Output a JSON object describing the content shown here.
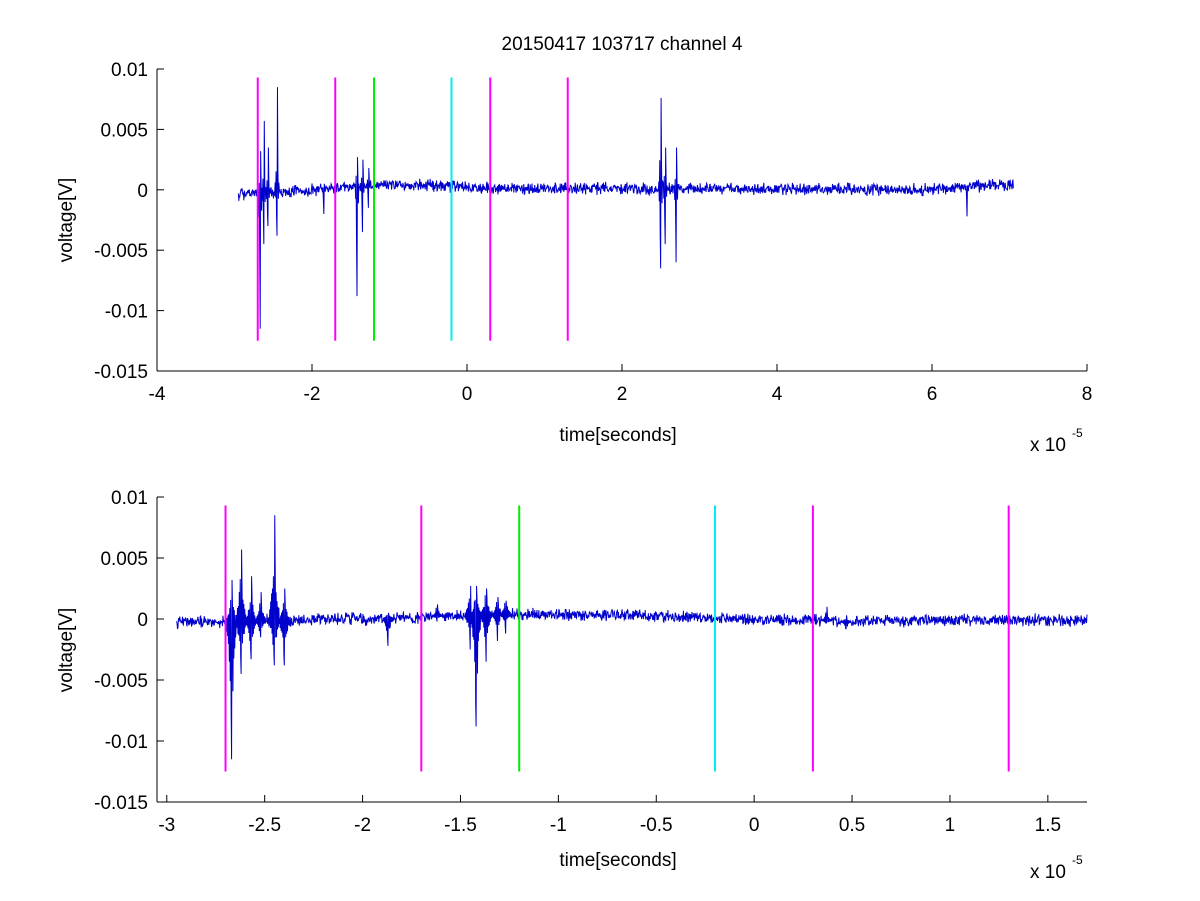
{
  "title": "20150417 103717 channel 4",
  "colors": {
    "signal": "#0000cc",
    "marker_magenta": "#ff00ff",
    "marker_green": "#00ee00",
    "marker_cyan": "#00eeee"
  },
  "chart_data": [
    {
      "type": "line",
      "title": "20150417 103717 channel 4",
      "xlabel": "time[seconds]",
      "ylabel": "voltage[V]",
      "x_multiplier_label": "x 10",
      "x_multiplier_exponent": "-5",
      "x_scale": 1e-05,
      "xlim": [
        -4,
        8
      ],
      "ylim": [
        -0.015,
        0.01
      ],
      "xticks": [
        -4,
        -2,
        0,
        2,
        4,
        6,
        8
      ],
      "xtick_labels": [
        "-4",
        "-2",
        "0",
        "2",
        "4",
        "6",
        "8"
      ],
      "yticks": [
        0.01,
        0.005,
        0,
        -0.005,
        -0.01,
        -0.015
      ],
      "ytick_labels": [
        "0.01",
        "0.005",
        "0",
        "-0.005",
        "-0.01",
        "-0.015"
      ],
      "grid": false,
      "series": [
        {
          "color": "#0000cc",
          "x_range": [
            -2.95,
            7.05
          ],
          "baseline_segments": [
            [
              -2.95,
              -0.0004
            ],
            [
              -1.8,
              0.0001
            ],
            [
              -1.2,
              0.0004
            ],
            [
              -0.6,
              0.0004
            ],
            [
              0.5,
              0.0001
            ],
            [
              2.0,
              0.0001
            ],
            [
              6.0,
              0.0
            ],
            [
              6.5,
              0.0003
            ],
            [
              7.05,
              0.0004
            ]
          ],
          "noise_amplitude": 0.0004,
          "bursts": [
            {
              "x": -2.67,
              "min": -0.0115,
              "max": 0.0032
            },
            {
              "x": -2.62,
              "min": -0.0045,
              "max": 0.0057
            },
            {
              "x": -2.57,
              "min": -0.003,
              "max": 0.0035
            },
            {
              "x": -2.45,
              "min": -0.0038,
              "max": 0.0085
            },
            {
              "x": -1.85,
              "min": -0.002,
              "max": 0.0005
            },
            {
              "x": -1.42,
              "min": -0.0088,
              "max": 0.0027
            },
            {
              "x": -1.35,
              "min": -0.0035,
              "max": 0.0025
            },
            {
              "x": -1.27,
              "min": -0.0015,
              "max": 0.0018
            },
            {
              "x": 2.5,
              "min": -0.0065,
              "max": 0.0076
            },
            {
              "x": 2.56,
              "min": -0.0045,
              "max": 0.0035
            },
            {
              "x": 2.7,
              "min": -0.006,
              "max": 0.0035
            },
            {
              "x": 6.45,
              "min": -0.0022,
              "max": 0.0003
            }
          ]
        }
      ],
      "markers": [
        {
          "x": -2.7,
          "color": "#ff00ff",
          "y_range": [
            -0.0125,
            0.0093
          ]
        },
        {
          "x": -1.7,
          "color": "#ff00ff",
          "y_range": [
            -0.0125,
            0.0093
          ]
        },
        {
          "x": -1.2,
          "color": "#00ee00",
          "y_range": [
            -0.0125,
            0.0093
          ]
        },
        {
          "x": -0.2,
          "color": "#00eeee",
          "y_range": [
            -0.0125,
            0.0093
          ]
        },
        {
          "x": 0.3,
          "color": "#ff00ff",
          "y_range": [
            -0.0125,
            0.0093
          ]
        },
        {
          "x": 1.3,
          "color": "#ff00ff",
          "y_range": [
            -0.0125,
            0.0093
          ]
        }
      ]
    },
    {
      "type": "line",
      "xlabel": "time[seconds]",
      "ylabel": "voltage[V]",
      "x_multiplier_label": "x 10",
      "x_multiplier_exponent": "-5",
      "x_scale": 1e-05,
      "xlim": [
        -3.05,
        1.7
      ],
      "ylim": [
        -0.015,
        0.01
      ],
      "xticks": [
        -3,
        -2.5,
        -2,
        -1.5,
        -1,
        -0.5,
        0,
        0.5,
        1,
        1.5
      ],
      "xtick_labels": [
        "-3",
        "-2.5",
        "-2",
        "-1.5",
        "-1",
        "-0.5",
        "0",
        "0.5",
        "1",
        "1.5"
      ],
      "yticks": [
        0.01,
        0.005,
        0,
        -0.005,
        -0.01,
        -0.015
      ],
      "ytick_labels": [
        "0.01",
        "0.005",
        "0",
        "-0.005",
        "-0.01",
        "-0.015"
      ],
      "grid": false,
      "series": [
        {
          "color": "#0000cc",
          "x_range": [
            -2.95,
            1.7
          ],
          "baseline_segments": [
            [
              -2.95,
              -0.0003
            ],
            [
              -2.0,
              0.0
            ],
            [
              -1.6,
              0.0002
            ],
            [
              -1.2,
              0.0004
            ],
            [
              -0.6,
              0.0003
            ],
            [
              0.0,
              0.0
            ],
            [
              0.5,
              -0.0002
            ],
            [
              1.0,
              -0.0001
            ],
            [
              1.7,
              -0.0001
            ]
          ],
          "noise_amplitude": 0.0004,
          "bursts": [
            {
              "x": -2.67,
              "min": -0.0115,
              "max": 0.0032
            },
            {
              "x": -2.62,
              "min": -0.0045,
              "max": 0.0057
            },
            {
              "x": -2.57,
              "min": -0.0033,
              "max": 0.0035
            },
            {
              "x": -2.52,
              "min": -0.0015,
              "max": 0.0022
            },
            {
              "x": -2.45,
              "min": -0.0038,
              "max": 0.0085
            },
            {
              "x": -2.4,
              "min": -0.0038,
              "max": 0.0025
            },
            {
              "x": -1.87,
              "min": -0.0022,
              "max": 0.0005
            },
            {
              "x": -1.62,
              "min": -0.0002,
              "max": 0.0012
            },
            {
              "x": -1.45,
              "min": -0.0025,
              "max": 0.0027
            },
            {
              "x": -1.42,
              "min": -0.0088,
              "max": 0.0027
            },
            {
              "x": -1.37,
              "min": -0.0035,
              "max": 0.0025
            },
            {
              "x": -1.31,
              "min": -0.0018,
              "max": 0.0018
            },
            {
              "x": -1.27,
              "min": -0.0012,
              "max": 0.0015
            },
            {
              "x": 0.37,
              "min": -0.0003,
              "max": 0.001
            },
            {
              "x": 0.47,
              "min": -0.0008,
              "max": 0.0003
            }
          ]
        }
      ],
      "markers": [
        {
          "x": -2.7,
          "color": "#ff00ff",
          "y_range": [
            -0.0125,
            0.0093
          ]
        },
        {
          "x": -1.7,
          "color": "#ff00ff",
          "y_range": [
            -0.0125,
            0.0093
          ]
        },
        {
          "x": -1.2,
          "color": "#00ee00",
          "y_range": [
            -0.0125,
            0.0093
          ]
        },
        {
          "x": -0.2,
          "color": "#00eeee",
          "y_range": [
            -0.0125,
            0.0093
          ]
        },
        {
          "x": 0.3,
          "color": "#ff00ff",
          "y_range": [
            -0.0125,
            0.0093
          ]
        },
        {
          "x": 1.3,
          "color": "#ff00ff",
          "y_range": [
            -0.0125,
            0.0093
          ]
        }
      ]
    }
  ]
}
